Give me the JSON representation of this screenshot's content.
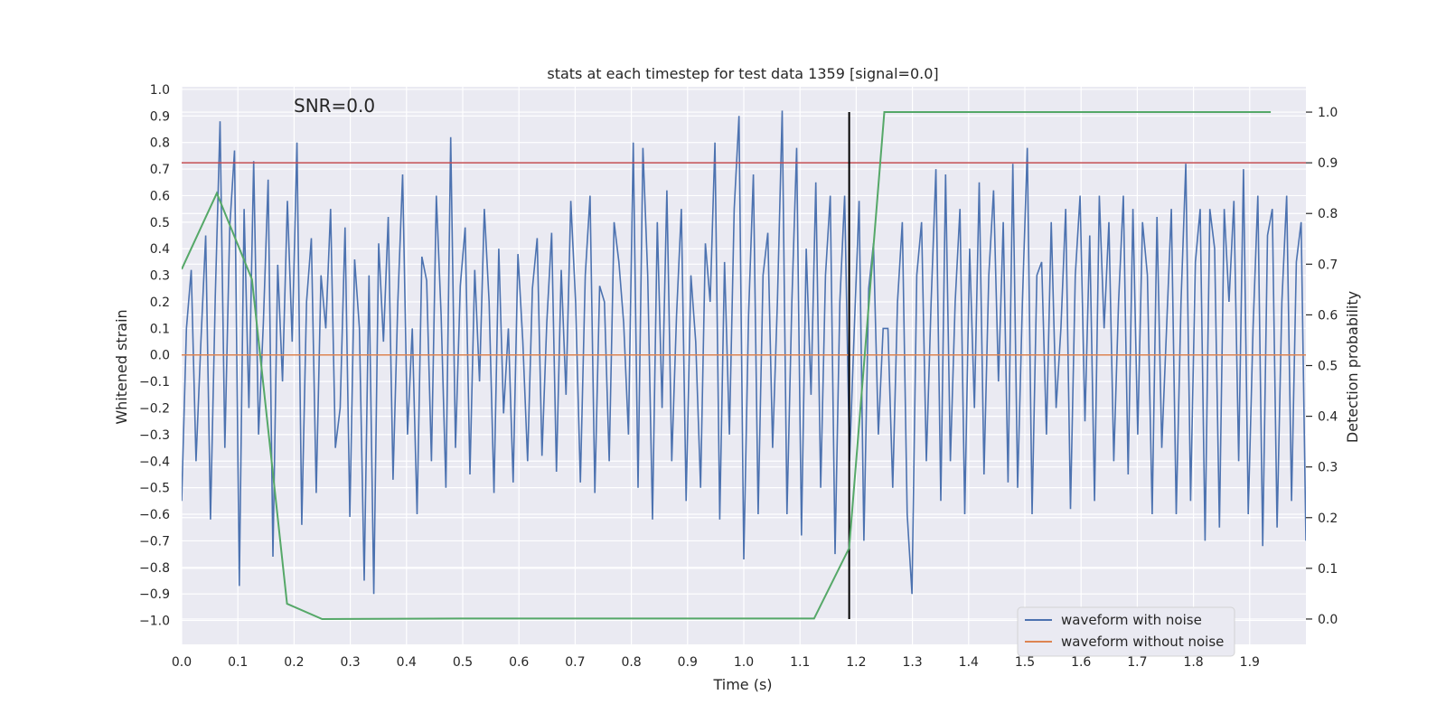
{
  "chart_data": {
    "type": "line",
    "title": "stats at each timestep for test data 1359 [signal=0.0]",
    "annotation": "SNR=0.0",
    "xlabel": "Time (s)",
    "ylabel_left": "Whitened strain",
    "ylabel_right": "Detection probability",
    "xlim": [
      0.0,
      2.0
    ],
    "ylim_left": [
      -1.09,
      1.01
    ],
    "ylim_right": [
      -0.05,
      1.05
    ],
    "x_ticks": [
      0.0,
      0.1,
      0.2,
      0.3,
      0.4,
      0.5,
      0.6,
      0.7,
      0.8,
      0.9,
      1.0,
      1.1,
      1.2,
      1.3,
      1.4,
      1.5,
      1.6,
      1.7,
      1.8,
      1.9
    ],
    "x_tick_labels": [
      "0.0",
      "0.1",
      "0.2",
      "0.3",
      "0.4",
      "0.5",
      "0.6",
      "0.7",
      "0.8",
      "0.9",
      "1.0",
      "1.1",
      "1.2",
      "1.3",
      "1.4",
      "1.5",
      "1.6",
      "1.7",
      "1.8",
      "1.9"
    ],
    "y_left_ticks": [
      1.0,
      0.9,
      0.8,
      0.7,
      0.6,
      0.5,
      0.4,
      0.3,
      0.2,
      0.1,
      0.0,
      -0.1,
      -0.2,
      -0.3,
      -0.4,
      -0.5,
      -0.6,
      -0.7,
      -0.8,
      -0.9,
      -1.0
    ],
    "y_left_tick_labels": [
      "1.0",
      "0.9",
      "0.8",
      "0.7",
      "0.6",
      "0.5",
      "0.4",
      "0.3",
      "0.2",
      "0.1",
      "0.0",
      "−0.1",
      "−0.2",
      "−0.3",
      "−0.4",
      "−0.5",
      "−0.6",
      "−0.7",
      "−0.8",
      "−0.9",
      "−1.0"
    ],
    "y_right_ticks": [
      1.0,
      0.9,
      0.8,
      0.7,
      0.6,
      0.5,
      0.4,
      0.3,
      0.2,
      0.1,
      0.0
    ],
    "y_right_tick_labels": [
      "1.0",
      "0.9",
      "0.8",
      "0.7",
      "0.6",
      "0.5",
      "0.4",
      "0.3",
      "0.2",
      "0.1",
      "0.0"
    ],
    "grid": true,
    "legend_position": "bottom-right",
    "series": [
      {
        "name": "waveform with noise",
        "color": "#4c72b0",
        "axis": "left",
        "x_start": 0.0,
        "x_end": 2.0,
        "values": [
          -0.55,
          0.1,
          0.32,
          -0.4,
          0.05,
          0.45,
          -0.62,
          0.22,
          0.88,
          -0.35,
          0.48,
          0.77,
          -0.87,
          0.55,
          -0.2,
          0.73,
          -0.3,
          0.12,
          0.66,
          -0.76,
          0.34,
          -0.1,
          0.58,
          0.05,
          0.8,
          -0.64,
          0.2,
          0.44,
          -0.52,
          0.3,
          0.1,
          0.55,
          -0.35,
          -0.2,
          0.48,
          -0.61,
          0.36,
          0.1,
          -0.85,
          0.3,
          -0.9,
          0.42,
          0.05,
          0.52,
          -0.47,
          0.2,
          0.68,
          -0.3,
          0.1,
          -0.6,
          0.37,
          0.28,
          -0.4,
          0.6,
          0.15,
          -0.5,
          0.82,
          -0.35,
          0.26,
          0.48,
          -0.45,
          0.32,
          -0.1,
          0.55,
          0.2,
          -0.52,
          0.4,
          -0.22,
          0.1,
          -0.48,
          0.38,
          0.05,
          -0.4,
          0.25,
          0.44,
          -0.38,
          0.12,
          0.46,
          -0.44,
          0.32,
          -0.15,
          0.58,
          0.2,
          -0.48,
          0.3,
          0.6,
          -0.52,
          0.26,
          0.2,
          -0.4,
          0.5,
          0.35,
          0.12,
          -0.3,
          0.8,
          -0.5,
          0.78,
          0.3,
          -0.62,
          0.5,
          -0.2,
          0.62,
          -0.4,
          0.15,
          0.55,
          -0.55,
          0.3,
          0.05,
          -0.5,
          0.42,
          0.2,
          0.8,
          -0.62,
          0.35,
          -0.3,
          0.55,
          0.9,
          -0.77,
          0.15,
          0.68,
          -0.6,
          0.3,
          0.46,
          -0.35,
          0.2,
          0.92,
          -0.6,
          0.2,
          0.78,
          -0.68,
          0.4,
          -0.15,
          0.65,
          -0.5,
          0.3,
          0.6,
          -0.75,
          0.2,
          0.6,
          -0.4,
          0.1,
          0.58,
          -0.7,
          0.25,
          0.42,
          -0.3,
          0.1,
          0.1,
          -0.5,
          0.2,
          0.5,
          -0.6,
          -0.9,
          0.3,
          0.5,
          -0.4,
          0.2,
          0.7,
          -0.55,
          0.68,
          -0.4,
          0.2,
          0.55,
          -0.6,
          0.4,
          -0.2,
          0.65,
          -0.45,
          0.3,
          0.62,
          -0.1,
          0.5,
          -0.48,
          0.72,
          -0.5,
          0.2,
          0.78,
          -0.6,
          0.3,
          0.35,
          -0.3,
          0.5,
          -0.2,
          0.1,
          0.55,
          -0.58,
          0.3,
          0.6,
          -0.25,
          0.45,
          -0.55,
          0.6,
          0.1,
          0.5,
          -0.4,
          0.2,
          0.6,
          -0.45,
          0.55,
          -0.3,
          0.5,
          0.3,
          -0.6,
          0.52,
          -0.35,
          0.1,
          0.55,
          -0.6,
          0.2,
          0.72,
          -0.55,
          0.35,
          0.55,
          -0.7,
          0.55,
          0.4,
          -0.65,
          0.55,
          0.2,
          0.58,
          -0.4,
          0.7,
          -0.6,
          0.1,
          0.6,
          -0.72,
          0.45,
          0.55,
          -0.65,
          0.2,
          0.6,
          -0.55,
          0.35,
          0.5,
          -0.7
        ]
      },
      {
        "name": "waveform without noise",
        "color": "#dd8452",
        "axis": "left",
        "x": [
          0.0,
          2.0
        ],
        "y": [
          0.0,
          0.0
        ]
      },
      {
        "name": "detection probability",
        "color": "#55a868",
        "axis": "right",
        "x": [
          0.0,
          0.0625,
          0.125,
          0.1875,
          0.25,
          0.5,
          1.125,
          1.1875,
          1.25,
          1.9375
        ],
        "y": [
          0.69,
          0.84,
          0.67,
          0.03,
          0.0,
          0.001,
          0.001,
          0.14,
          1.0,
          1.0
        ]
      }
    ],
    "threshold_line": {
      "color": "#c44e52",
      "axis": "right",
      "value": 0.9
    },
    "marker_line": {
      "color": "#000000",
      "axis": "right",
      "x": 1.1875,
      "y_range": [
        0.0,
        1.0
      ]
    }
  }
}
